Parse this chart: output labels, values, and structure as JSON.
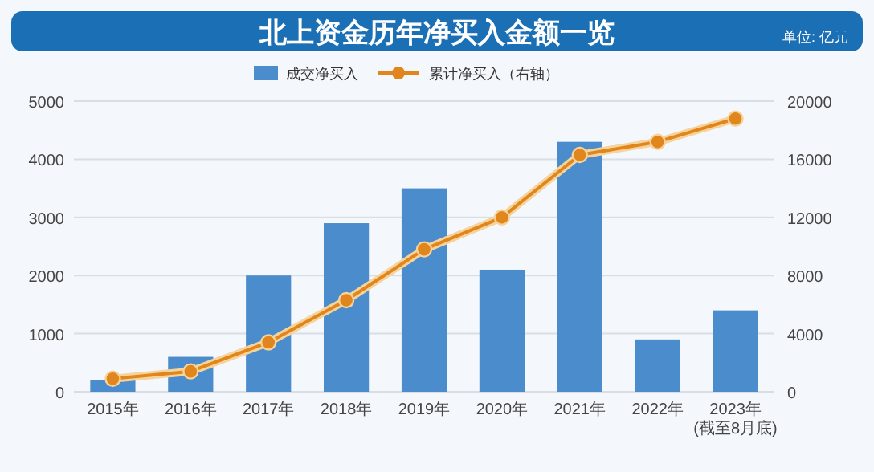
{
  "chart_data": {
    "type": "bar",
    "title": "北上资金历年净买入金额一览",
    "annotations": [
      "单位: 亿元"
    ],
    "categories": [
      "2015年",
      "2016年",
      "2017年",
      "2018年",
      "2019年",
      "2020年",
      "2021年",
      "2022年",
      "2023年\n(截至8月底)"
    ],
    "series": [
      {
        "name": "成交净买入",
        "color": "#4a8ccc",
        "values": [
          200,
          600,
          2000,
          2900,
          3500,
          2100,
          4300,
          900,
          1400
        ]
      },
      {
        "name": "累计净买入（右轴）",
        "type": "line",
        "axis": "y2",
        "color": "#e0861c",
        "marker": "circle",
        "values": [
          900,
          1400,
          3400,
          6300,
          9800,
          12000,
          16300,
          17200,
          18800
        ]
      }
    ],
    "ylim": [
      0,
      5000
    ],
    "yticks": [
      0,
      1000,
      2000,
      3000,
      4000,
      5000
    ],
    "y2lim": [
      0,
      20000
    ],
    "y2ticks": [
      0,
      4000,
      8000,
      12000,
      16000,
      20000
    ],
    "grid": "y",
    "legend": "top"
  }
}
